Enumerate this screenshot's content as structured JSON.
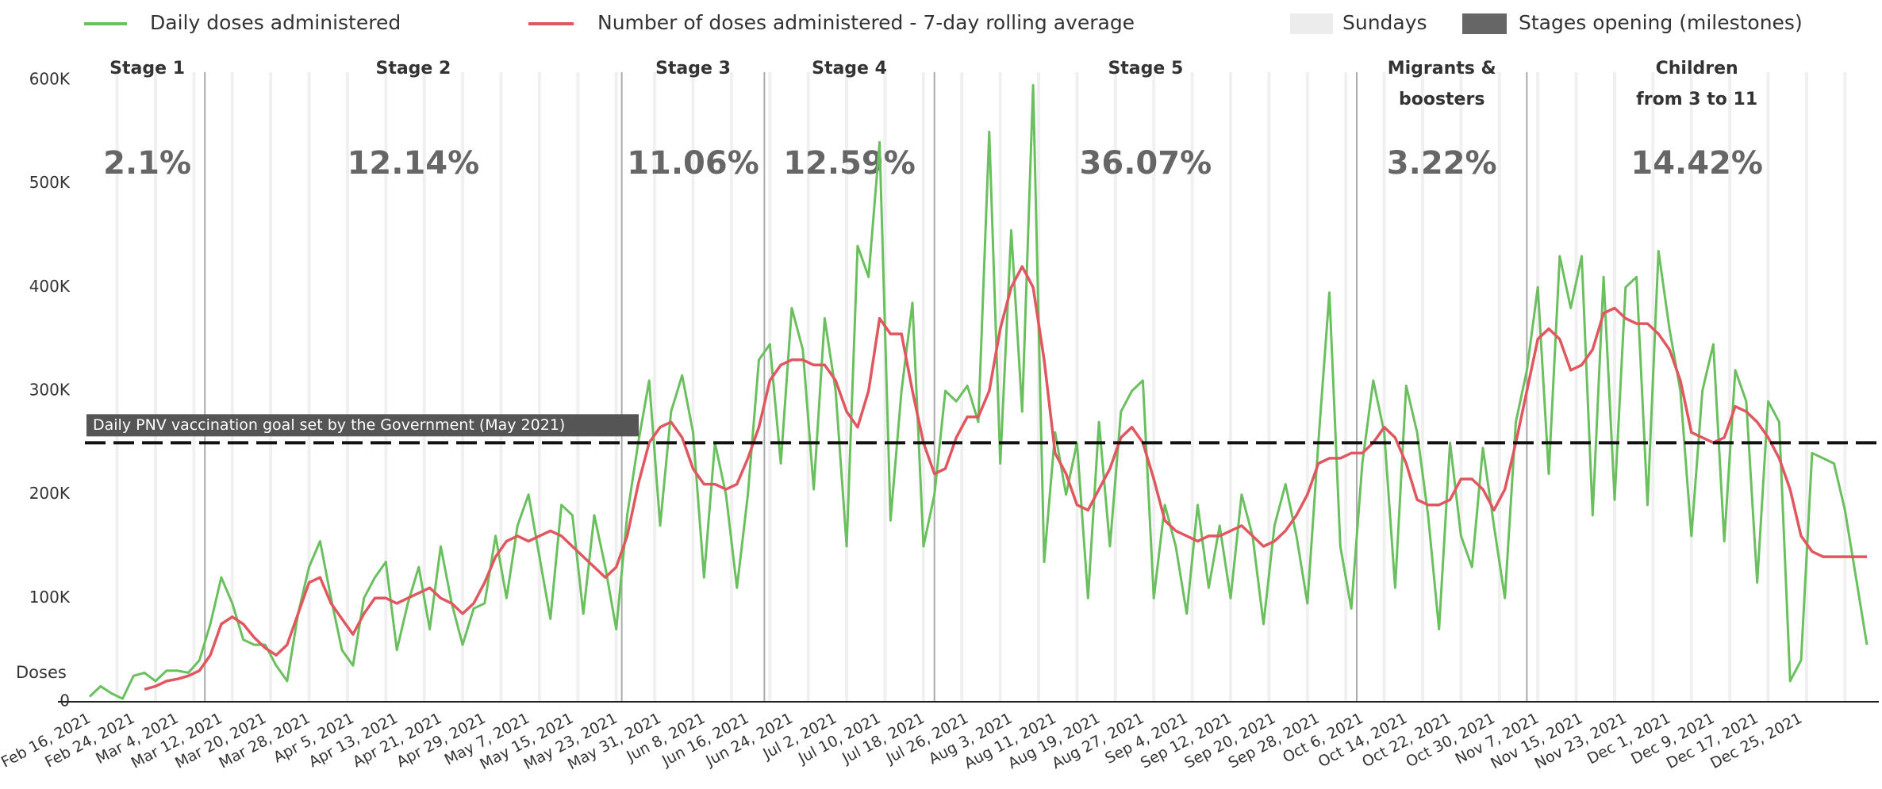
{
  "chart_data": {
    "type": "line",
    "y_label": "Doses",
    "categories": [
      "Feb 16, 2021",
      null,
      null,
      null,
      "Feb 24, 2021",
      null,
      null,
      null,
      "Mar 4, 2021",
      null,
      null,
      null,
      "Mar 12, 2021",
      null,
      null,
      null,
      "Mar 20, 2021",
      null,
      null,
      null,
      "Mar 28, 2021",
      null,
      null,
      null,
      "Apr 5, 2021",
      null,
      null,
      null,
      "Apr 13, 2021",
      null,
      null,
      null,
      "Apr 21, 2021",
      null,
      null,
      null,
      "Apr 29, 2021",
      null,
      null,
      null,
      "May 7, 2021",
      null,
      null,
      null,
      "May 15, 2021",
      null,
      null,
      null,
      "May 23, 2021",
      null,
      null,
      null,
      "May 31, 2021",
      null,
      null,
      null,
      "Jun 8, 2021",
      null,
      null,
      null,
      "Jun 16, 2021",
      null,
      null,
      null,
      "Jun 24, 2021",
      null,
      null,
      null,
      "Jul 2, 2021",
      null,
      null,
      null,
      "Jul 10, 2021",
      null,
      null,
      null,
      "Jul 18, 2021",
      null,
      null,
      null,
      "Jul 26, 2021",
      null,
      null,
      null,
      "Aug 3, 2021",
      null,
      null,
      null,
      "Aug 11, 2021",
      null,
      null,
      null,
      "Aug 19, 2021",
      null,
      null,
      null,
      "Aug 27, 2021",
      null,
      null,
      null,
      "Sep 4, 2021",
      null,
      null,
      null,
      "Sep 12, 2021",
      null,
      null,
      null,
      "Sep 20, 2021",
      null,
      null,
      null,
      "Sep 28, 2021",
      null,
      null,
      null,
      "Oct 6, 2021",
      null,
      null,
      null,
      "Oct 14, 2021",
      null,
      null,
      null,
      "Oct 22, 2021",
      null,
      null,
      null,
      "Oct 30, 2021",
      null,
      null,
      null,
      "Nov 7, 2021",
      null,
      null,
      null,
      "Nov 15, 2021",
      null,
      null,
      null,
      "Nov 23, 2021",
      null,
      null,
      null,
      "Dec 1, 2021",
      null,
      null,
      null,
      "Dec 9, 2021",
      null,
      null,
      null,
      "Dec 17, 2021",
      null,
      null,
      null,
      "Dec 25, 2021",
      null,
      null,
      null,
      null,
      null,
      null
    ],
    "series": [
      {
        "name": "Daily doses administered",
        "color": "#6abf5e",
        "values": [
          5000,
          15000,
          8000,
          3000,
          25000,
          28000,
          20000,
          30000,
          30000,
          28000,
          40000,
          75000,
          120000,
          95000,
          60000,
          55000,
          55000,
          35000,
          20000,
          85000,
          130000,
          155000,
          100000,
          50000,
          35000,
          100000,
          120000,
          135000,
          50000,
          95000,
          130000,
          70000,
          150000,
          95000,
          55000,
          90000,
          95000,
          160000,
          100000,
          170000,
          200000,
          140000,
          80000,
          190000,
          180000,
          85000,
          180000,
          130000,
          70000,
          180000,
          250000,
          310000,
          170000,
          280000,
          315000,
          260000,
          120000,
          250000,
          200000,
          110000,
          200000,
          330000,
          345000,
          230000,
          380000,
          340000,
          205000,
          370000,
          300000,
          150000,
          440000,
          410000,
          540000,
          175000,
          300000,
          385000,
          150000,
          200000,
          300000,
          290000,
          305000,
          270000,
          550000,
          230000,
          455000,
          280000,
          595000,
          135000,
          260000,
          200000,
          250000,
          100000,
          270000,
          150000,
          280000,
          300000,
          310000,
          100000,
          190000,
          150000,
          85000,
          190000,
          110000,
          170000,
          100000,
          200000,
          160000,
          75000,
          170000,
          210000,
          160000,
          95000,
          250000,
          395000,
          150000,
          90000,
          230000,
          310000,
          260000,
          110000,
          305000,
          260000,
          180000,
          70000,
          250000,
          160000,
          130000,
          245000,
          170000,
          100000,
          270000,
          320000,
          400000,
          220000,
          430000,
          380000,
          430000,
          180000,
          410000,
          195000,
          400000,
          410000,
          190000,
          435000,
          360000,
          300000,
          160000,
          300000,
          345000,
          155000,
          320000,
          290000,
          115000,
          290000,
          270000,
          20000,
          40000,
          240000,
          235000,
          230000,
          185000,
          120000,
          55000
        ]
      },
      {
        "name": "Number of doses administered - 7-day rolling average",
        "color": "#e0575f",
        "values": [
          null,
          null,
          null,
          null,
          null,
          12000,
          15000,
          20000,
          22000,
          25000,
          30000,
          45000,
          75000,
          82000,
          75000,
          62000,
          52000,
          45000,
          55000,
          85000,
          115000,
          120000,
          95000,
          80000,
          65000,
          85000,
          100000,
          100000,
          95000,
          100000,
          105000,
          110000,
          100000,
          95000,
          85000,
          95000,
          115000,
          140000,
          155000,
          160000,
          155000,
          160000,
          165000,
          160000,
          150000,
          140000,
          130000,
          120000,
          130000,
          160000,
          210000,
          250000,
          265000,
          270000,
          255000,
          225000,
          210000,
          210000,
          205000,
          210000,
          235000,
          265000,
          310000,
          325000,
          330000,
          330000,
          325000,
          325000,
          310000,
          280000,
          265000,
          300000,
          370000,
          355000,
          355000,
          300000,
          250000,
          220000,
          225000,
          255000,
          275000,
          275000,
          300000,
          360000,
          400000,
          420000,
          400000,
          330000,
          240000,
          220000,
          190000,
          185000,
          205000,
          225000,
          255000,
          265000,
          250000,
          215000,
          175000,
          165000,
          160000,
          155000,
          160000,
          160000,
          165000,
          170000,
          160000,
          150000,
          155000,
          165000,
          180000,
          200000,
          230000,
          235000,
          235000,
          240000,
          240000,
          250000,
          265000,
          255000,
          230000,
          195000,
          190000,
          190000,
          195000,
          215000,
          215000,
          205000,
          185000,
          205000,
          250000,
          300000,
          350000,
          360000,
          350000,
          320000,
          325000,
          340000,
          375000,
          380000,
          370000,
          365000,
          365000,
          355000,
          340000,
          310000,
          260000,
          255000,
          250000,
          255000,
          285000,
          280000,
          270000,
          255000,
          235000,
          205000,
          160000,
          145000,
          140000,
          140000,
          140000,
          140000,
          140000
        ]
      }
    ],
    "ylim": [
      0,
      600000
    ],
    "yticks": [
      0,
      {
        "value": 100000,
        "label": "100K"
      },
      {
        "value": 200000,
        "label": "200K"
      },
      {
        "value": 300000,
        "label": "300K"
      },
      {
        "value": 400000,
        "label": "400K"
      },
      {
        "value": 500000,
        "label": "500K"
      },
      {
        "value": 600000,
        "label": "600K"
      }
    ],
    "goal": {
      "value": 250000,
      "label": "Daily PNV vaccination goal set by the Government (May 2021)"
    },
    "sundays_label": "Sundays",
    "milestones_label": "Stages opening (milestones)",
    "stages": {
      "names": [
        [
          "Stage 1"
        ],
        [
          "Stage 2"
        ],
        [
          "Stage 3"
        ],
        [
          "Stage 4"
        ],
        [
          "Stage 5"
        ],
        [
          "Migrants &",
          "boosters"
        ],
        [
          "Children",
          "from 3 to 11"
        ]
      ],
      "values": [
        2.1,
        12.14,
        11.06,
        12.59,
        36.07,
        3.22,
        14.42
      ],
      "value_labels": [
        "2.1%",
        "12.14%",
        "11.06%",
        "12.59%",
        "36.07%",
        "3.22%",
        "14.42%"
      ],
      "starts": [
        "Feb 16, 2021",
        "Mar 9, 2021",
        "May 24, 2021",
        "Jun 19, 2021",
        "Jul 20, 2021",
        "Oct 5, 2021",
        "Nov 5, 2021"
      ]
    }
  }
}
